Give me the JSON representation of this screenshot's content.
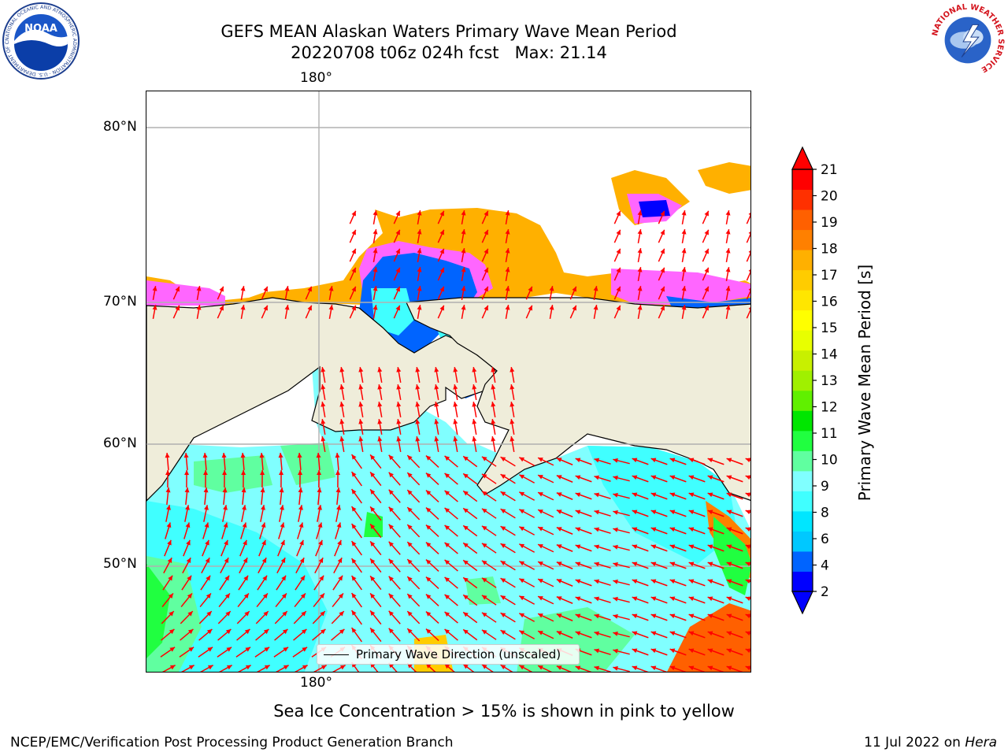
{
  "header": {
    "title_line1": "GEFS MEAN Alaskan Waters Primary Wave Mean Period",
    "title_line2": "20220708 t06z 024h fcst   Max: 21.14"
  },
  "logos": {
    "noaa_text": "NOAA",
    "noaa_ring_text": "NATIONAL OCEANIC AND ATMOSPHERIC ADMINISTRATION · U.S. DEPARTMENT OF COMMERCE",
    "nws_ring_text": "NATIONAL WEATHER SERVICE"
  },
  "map": {
    "lon_label_top": "180°",
    "lon_label_bottom": "180°",
    "lat_labels": [
      "80°N",
      "70°N",
      "60°N",
      "50°N"
    ],
    "legend_label": "Primary Wave Direction (unscaled)",
    "land_color": "#efedda",
    "ocean_color": "#ffffff",
    "arrow_color": "#ff0000",
    "grid_color": "#b0b0b0"
  },
  "colorbar": {
    "label": "Primary Wave Mean Period [s]",
    "ticks": [
      "2",
      "4",
      "6",
      "8",
      "9",
      "10",
      "11",
      "12",
      "13",
      "14",
      "15",
      "16",
      "17",
      "18",
      "19",
      "20",
      "21"
    ],
    "colors": [
      "#0000ff",
      "#0064ff",
      "#00c8ff",
      "#00e6ff",
      "#40ffff",
      "#80ffff",
      "#60ffa0",
      "#20ff40",
      "#00e600",
      "#60f000",
      "#a0f000",
      "#c8f000",
      "#e8ff00",
      "#ffff00",
      "#ffe600",
      "#ffcc00",
      "#ffb000",
      "#ff8000",
      "#ff6000",
      "#ff3000",
      "#ff0000"
    ]
  },
  "footnote": "Sea Ice Concentration > 15% is shown in pink to yellow",
  "footer": {
    "left": "NCEP/EMC/Verification Post Processing Product Generation Branch",
    "right_prefix": "11 Jul 2022 on ",
    "right_machine": "Hera"
  }
}
